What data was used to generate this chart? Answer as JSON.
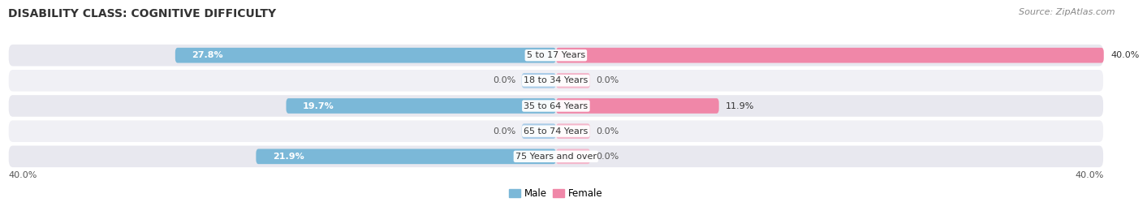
{
  "title": "DISABILITY CLASS: COGNITIVE DIFFICULTY",
  "source": "Source: ZipAtlas.com",
  "categories": [
    "5 to 17 Years",
    "18 to 34 Years",
    "35 to 64 Years",
    "65 to 74 Years",
    "75 Years and over"
  ],
  "male_values": [
    27.8,
    0.0,
    19.7,
    0.0,
    21.9
  ],
  "female_values": [
    40.0,
    0.0,
    11.9,
    0.0,
    0.0
  ],
  "male_color": "#7bb8d8",
  "female_color": "#f087a8",
  "male_stub_color": "#aacce8",
  "female_stub_color": "#f4b8cc",
  "max_value": 40.0,
  "axis_label_left": "40.0%",
  "axis_label_right": "40.0%",
  "title_fontsize": 10,
  "source_fontsize": 8,
  "label_fontsize": 8,
  "category_fontsize": 8,
  "legend_fontsize": 8.5,
  "bar_height": 0.6,
  "background_color": "#ffffff",
  "row_bg_colors": [
    "#e8e8ef",
    "#f0f0f5"
  ],
  "male_label": "Male",
  "female_label": "Female"
}
